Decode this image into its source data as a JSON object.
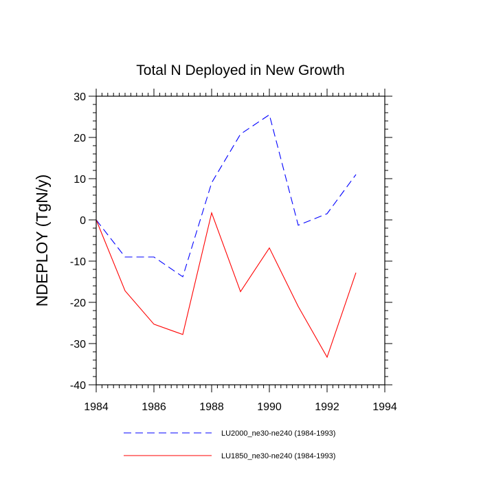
{
  "chart_data": {
    "type": "line",
    "title": "Total N Deployed in New Growth",
    "xlabel": "",
    "ylabel": "NDEPLOY  (TgN/y)",
    "xlim": [
      1984,
      1994
    ],
    "ylim": [
      -40,
      30
    ],
    "xticks": [
      1984,
      1986,
      1988,
      1990,
      1992,
      1994
    ],
    "yticks": [
      -40,
      -30,
      -20,
      -10,
      0,
      10,
      20,
      30
    ],
    "x": [
      1984,
      1985,
      1986,
      1987,
      1988,
      1989,
      1990,
      1991,
      1992,
      1993
    ],
    "series": [
      {
        "name": "LU2000_ne30-ne240 (1984-1993)",
        "color": "#0000ff",
        "dash": "dashed",
        "values": [
          0,
          -9,
          -9,
          -13.8,
          9,
          20.8,
          25.5,
          -1.3,
          1.5,
          11
        ]
      },
      {
        "name": "LU1850_ne30-ne240 (1984-1993)",
        "color": "#ff0000",
        "dash": "solid",
        "values": [
          0,
          -17.2,
          -25.3,
          -27.8,
          1.7,
          -17.4,
          -6.8,
          -21,
          -33.3,
          -12.8
        ]
      }
    ],
    "legend_position": "bottom"
  }
}
